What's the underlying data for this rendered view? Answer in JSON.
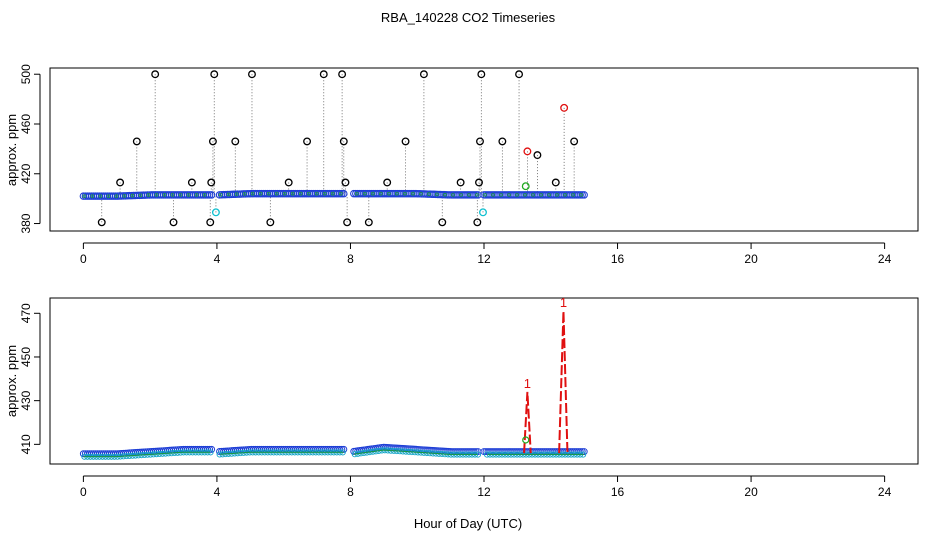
{
  "title": "RBA_140228  CO2 Timeseries",
  "xlabel": "Hour of Day (UTC)",
  "chart_data": [
    {
      "type": "scatter",
      "id": "top",
      "ylabel": "approx. ppm",
      "xlim": [
        -1,
        25
      ],
      "ylim": [
        374,
        505
      ],
      "x_ticks": [
        0,
        4,
        8,
        12,
        16,
        20,
        24
      ],
      "y_ticks": [
        380,
        420,
        460,
        500
      ],
      "baseline": [
        [
          0.0,
          402
        ],
        [
          1.0,
          402
        ],
        [
          2.0,
          403
        ],
        [
          3.0,
          403
        ],
        [
          4.0,
          403
        ],
        [
          5.0,
          404
        ],
        [
          6.0,
          404
        ],
        [
          7.0,
          404
        ],
        [
          8.0,
          404
        ],
        [
          9.0,
          404
        ],
        [
          10.0,
          404
        ],
        [
          11.0,
          403
        ],
        [
          12.0,
          403
        ],
        [
          13.0,
          403
        ],
        [
          14.0,
          403
        ],
        [
          15.0,
          403
        ]
      ],
      "gaps": [
        [
          3.85,
          4.05
        ],
        [
          7.85,
          8.05
        ],
        [
          11.85,
          12.0
        ]
      ],
      "outliers_black": [
        [
          0.55,
          381
        ],
        [
          1.1,
          413
        ],
        [
          1.6,
          446
        ],
        [
          2.15,
          500
        ],
        [
          2.7,
          381
        ],
        [
          3.25,
          413
        ],
        [
          3.8,
          381
        ],
        [
          3.83,
          413
        ],
        [
          3.88,
          446
        ],
        [
          3.92,
          500
        ],
        [
          4.55,
          446
        ],
        [
          5.05,
          500
        ],
        [
          5.6,
          381
        ],
        [
          6.15,
          413
        ],
        [
          6.7,
          446
        ],
        [
          7.2,
          500
        ],
        [
          7.75,
          500
        ],
        [
          7.8,
          446
        ],
        [
          7.85,
          413
        ],
        [
          7.9,
          381
        ],
        [
          8.55,
          381
        ],
        [
          9.1,
          413
        ],
        [
          9.65,
          446
        ],
        [
          10.2,
          500
        ],
        [
          10.75,
          381
        ],
        [
          11.3,
          413
        ],
        [
          11.8,
          381
        ],
        [
          11.85,
          413
        ],
        [
          11.88,
          446
        ],
        [
          11.92,
          500
        ],
        [
          12.55,
          446
        ],
        [
          13.05,
          500
        ],
        [
          13.6,
          435
        ],
        [
          14.15,
          413
        ],
        [
          14.7,
          446
        ]
      ],
      "outliers_red": [
        [
          13.3,
          438
        ],
        [
          14.4,
          473
        ]
      ],
      "outliers_cyan": [
        [
          3.97,
          389
        ],
        [
          11.97,
          389
        ]
      ],
      "outliers_green": [
        [
          13.25,
          410
        ]
      ]
    },
    {
      "type": "line",
      "id": "bottom",
      "ylabel": "approx. ppm",
      "xlim": [
        -1,
        25
      ],
      "ylim": [
        401,
        477
      ],
      "x_ticks": [
        0,
        4,
        8,
        12,
        16,
        20,
        24
      ],
      "y_ticks": [
        410,
        430,
        450,
        470
      ],
      "baseline": [
        [
          0.0,
          405
        ],
        [
          1.0,
          405
        ],
        [
          2.0,
          406
        ],
        [
          3.0,
          407
        ],
        [
          3.85,
          407
        ],
        [
          4.05,
          406
        ],
        [
          5.0,
          407
        ],
        [
          6.0,
          407
        ],
        [
          7.0,
          407
        ],
        [
          7.85,
          407
        ],
        [
          8.05,
          406
        ],
        [
          9.0,
          408
        ],
        [
          10.0,
          407
        ],
        [
          11.0,
          406
        ],
        [
          11.85,
          406
        ],
        [
          12.0,
          406
        ],
        [
          13.0,
          406
        ],
        [
          14.0,
          406
        ],
        [
          15.0,
          406
        ]
      ],
      "gaps": [
        [
          3.85,
          4.05
        ],
        [
          7.85,
          8.05
        ],
        [
          11.85,
          12.0
        ]
      ],
      "spikes": [
        {
          "x_start": 13.2,
          "x_peak": 13.3,
          "x_end": 13.4,
          "peak": 434,
          "label": "1"
        },
        {
          "x_start": 14.25,
          "x_peak": 14.38,
          "x_end": 14.5,
          "peak": 471,
          "label": "1"
        }
      ],
      "green_points": [
        [
          13.25,
          412
        ]
      ]
    }
  ]
}
